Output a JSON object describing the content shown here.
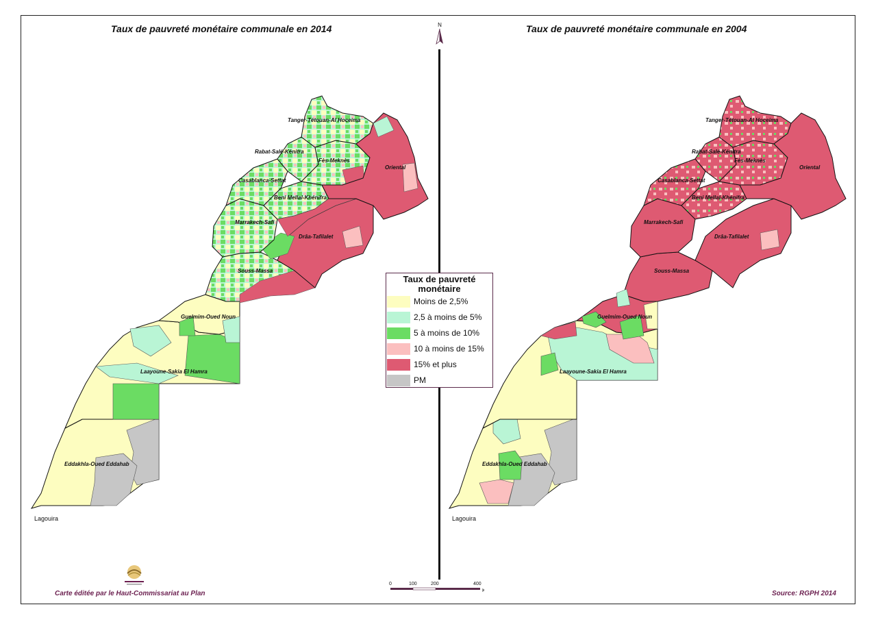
{
  "maps": {
    "left_title": "Taux de pauvreté monétaire communale en 2014",
    "right_title": "Taux de pauvreté monétaire communale en 2004"
  },
  "regions": {
    "tanger": "Tanger-Tétouan-Al Hoceima",
    "rabat": "Rabat-Salé-Kénitra",
    "fes": "Fès-Meknès",
    "oriental": "Oriental",
    "casablanca": "Casablanca-Settat",
    "benimellal": "Beni Mellal-Khénifra",
    "marrakech": "Marrakech-Safi",
    "draa": "Drâa-Tafilalet",
    "souss": "Souss-Massa",
    "guelmim": "Guelmim-Oued Noun",
    "laayoune": "Laayoune-Sakia El Hamra",
    "dakhla": "Eddakhla-Oued Eddahab",
    "lagouira": "Lagouira"
  },
  "legend": {
    "title": "Taux de pauvreté monétaire",
    "items": [
      {
        "label": "Moins de 2,5%",
        "color": "#fdfdc0"
      },
      {
        "label": "2,5 à moins de 5%",
        "color": "#b9f5d5"
      },
      {
        "label": "5 à moins de 10%",
        "color": "#6bdc63"
      },
      {
        "label": "10 à moins de 15%",
        "color": "#fbbfbf"
      },
      {
        "label": "15% et plus",
        "color": "#de5a72"
      },
      {
        "label": "PM",
        "color": "#c6c6c6"
      }
    ]
  },
  "north_label": "N",
  "scale": {
    "ticks": [
      "0",
      "100",
      "200",
      "400"
    ],
    "unit": "Km"
  },
  "footer": {
    "credit": "Carte éditée par le Haut-Commissariat au Plan",
    "source": "Source: RGPH 2014"
  }
}
